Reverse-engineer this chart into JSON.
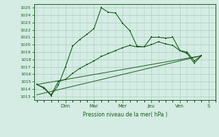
{
  "bg_color": "#d4ece4",
  "grid_color": "#aacbbf",
  "line_color": "#1a5c1a",
  "xlabel": "Pression niveau de la mer( hPa )",
  "ylim": [
    1012.5,
    1025.5
  ],
  "yticks": [
    1013,
    1014,
    1015,
    1016,
    1017,
    1018,
    1019,
    1020,
    1021,
    1022,
    1023,
    1024,
    1025
  ],
  "day_labels": [
    "Dim",
    "Mar",
    "Mer",
    "Jeu",
    "Ven",
    "S"
  ],
  "day_positions": [
    2.0,
    4.0,
    6.0,
    8.0,
    10.0,
    12.0
  ],
  "xlim": [
    -0.2,
    12.5
  ],
  "series1_x": [
    0.0,
    0.5,
    1.0,
    1.5,
    2.0,
    2.5,
    3.0,
    3.5,
    4.0,
    4.5,
    5.0,
    5.5,
    6.0,
    6.5,
    7.0,
    7.5,
    8.0,
    8.5,
    9.0,
    9.5,
    10.0,
    10.5,
    11.0,
    11.5
  ],
  "series1_y": [
    1014.6,
    1014.1,
    1013.1,
    1014.5,
    1017.0,
    1019.8,
    1020.7,
    1021.4,
    1022.2,
    1025.0,
    1024.4,
    1024.3,
    1022.9,
    1021.9,
    1019.8,
    1019.7,
    1021.0,
    1021.0,
    1020.9,
    1021.0,
    1019.2,
    1019.0,
    1017.8,
    1018.5
  ],
  "series2_x": [
    0.0,
    0.5,
    1.0,
    1.5,
    2.0,
    2.5,
    3.0,
    3.5,
    4.0,
    4.5,
    5.0,
    5.5,
    6.0,
    6.5,
    7.0,
    7.5,
    8.0,
    8.5,
    9.0,
    9.5,
    10.0,
    10.5,
    11.0,
    11.5
  ],
  "series2_y": [
    1014.6,
    1014.2,
    1013.2,
    1015.0,
    1015.3,
    1016.1,
    1016.8,
    1017.3,
    1017.8,
    1018.4,
    1018.8,
    1019.2,
    1019.6,
    1019.9,
    1019.7,
    1019.7,
    1020.0,
    1020.4,
    1020.1,
    1019.9,
    1019.2,
    1018.8,
    1017.5,
    1018.5
  ],
  "series3_x": [
    0.0,
    11.5
  ],
  "series3_y": [
    1014.6,
    1018.5
  ],
  "series4_x": [
    0.0,
    11.5
  ],
  "series4_y": [
    1013.2,
    1018.5
  ]
}
